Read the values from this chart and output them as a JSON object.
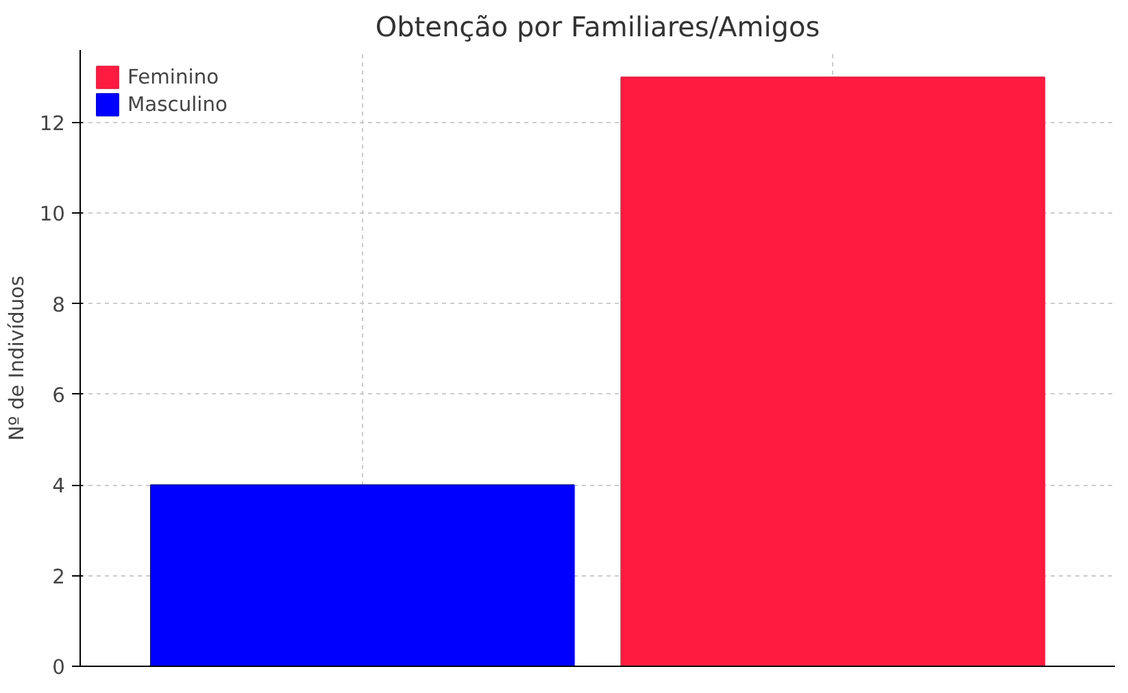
{
  "chart_data": {
    "type": "bar",
    "title": "Obtenção por Familiares/Amigos",
    "ylabel": "Nº de Indivíduos",
    "categories": [
      null,
      null
    ],
    "series": [
      {
        "name": "Masculino",
        "color": "#0000ff",
        "values": [
          4,
          null
        ]
      },
      {
        "name": "Feminino",
        "color": "#ff1a40",
        "values": [
          null,
          13
        ]
      }
    ],
    "ylim": [
      0,
      13.6
    ],
    "yticks": [
      0,
      2,
      4,
      6,
      8,
      10,
      12
    ],
    "grid": true,
    "legend": "top left"
  }
}
